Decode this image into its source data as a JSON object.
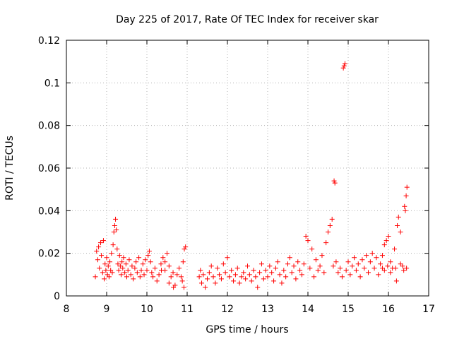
{
  "chart_data": {
    "type": "scatter",
    "title": "Day 225 of 2017, Rate Of TEC Index for receiver skar",
    "xlabel": "GPS time / hours",
    "ylabel": "ROTI / TECUs",
    "xlim": [
      8,
      17
    ],
    "ylim": [
      0,
      0.12
    ],
    "xticks": [
      "8",
      "9",
      "10",
      "11",
      "12",
      "13",
      "14",
      "15",
      "16",
      "17"
    ],
    "yticks": [
      "0",
      "0.02",
      "0.04",
      "0.06",
      "0.08",
      "0.1",
      "0.12"
    ],
    "grid": true,
    "marker": "+",
    "color": "#ff0000",
    "series": [
      {
        "name": "ROTI",
        "points": [
          [
            8.72,
            0.009
          ],
          [
            8.75,
            0.021
          ],
          [
            8.78,
            0.017
          ],
          [
            8.8,
            0.023
          ],
          [
            8.82,
            0.013
          ],
          [
            8.85,
            0.025
          ],
          [
            8.87,
            0.019
          ],
          [
            8.9,
            0.011
          ],
          [
            8.92,
            0.026
          ],
          [
            8.94,
            0.008
          ],
          [
            8.96,
            0.015
          ],
          [
            8.98,
            0.012
          ],
          [
            9.0,
            0.018
          ],
          [
            9.02,
            0.01
          ],
          [
            9.04,
            0.014
          ],
          [
            9.06,
            0.009
          ],
          [
            9.08,
            0.016
          ],
          [
            9.1,
            0.012
          ],
          [
            9.12,
            0.02
          ],
          [
            9.14,
            0.011
          ],
          [
            9.16,
            0.024
          ],
          [
            9.18,
            0.03
          ],
          [
            9.2,
            0.033
          ],
          [
            9.22,
            0.036
          ],
          [
            9.24,
            0.031
          ],
          [
            9.26,
            0.022
          ],
          [
            9.28,
            0.015
          ],
          [
            9.3,
            0.012
          ],
          [
            9.32,
            0.019
          ],
          [
            9.34,
            0.014
          ],
          [
            9.36,
            0.01
          ],
          [
            9.38,
            0.016
          ],
          [
            9.4,
            0.013
          ],
          [
            9.42,
            0.018
          ],
          [
            9.45,
            0.011
          ],
          [
            9.48,
            0.015
          ],
          [
            9.5,
            0.009
          ],
          [
            9.53,
            0.012
          ],
          [
            9.56,
            0.017
          ],
          [
            9.6,
            0.01
          ],
          [
            9.63,
            0.014
          ],
          [
            9.66,
            0.008
          ],
          [
            9.7,
            0.013
          ],
          [
            9.73,
            0.016
          ],
          [
            9.76,
            0.011
          ],
          [
            9.8,
            0.018
          ],
          [
            9.83,
            0.009
          ],
          [
            9.86,
            0.012
          ],
          [
            9.9,
            0.015
          ],
          [
            9.93,
            0.01
          ],
          [
            9.96,
            0.017
          ],
          [
            10.0,
            0.012
          ],
          [
            10.03,
            0.019
          ],
          [
            10.06,
            0.021
          ],
          [
            10.09,
            0.016
          ],
          [
            10.12,
            0.011
          ],
          [
            10.15,
            0.009
          ],
          [
            10.2,
            0.013
          ],
          [
            10.25,
            0.007
          ],
          [
            10.3,
            0.01
          ],
          [
            10.35,
            0.015
          ],
          [
            10.4,
            0.018
          ],
          [
            10.45,
            0.012
          ],
          [
            10.5,
            0.02
          ],
          [
            10.55,
            0.014
          ],
          [
            10.6,
            0.009
          ],
          [
            10.65,
            0.011
          ],
          [
            10.7,
            0.005
          ],
          [
            10.75,
            0.01
          ],
          [
            10.8,
            0.013
          ],
          [
            10.85,
            0.009
          ],
          [
            10.9,
            0.016
          ],
          [
            10.93,
            0.022
          ],
          [
            10.96,
            0.023
          ],
          [
            10.92,
            0.004
          ],
          [
            10.88,
            0.007
          ],
          [
            10.66,
            0.004
          ],
          [
            10.55,
            0.006
          ],
          [
            10.45,
            0.016
          ],
          [
            10.36,
            0.012
          ],
          [
            11.3,
            0.009
          ],
          [
            11.33,
            0.012
          ],
          [
            11.36,
            0.006
          ],
          [
            11.4,
            0.01
          ],
          [
            11.45,
            0.004
          ],
          [
            11.5,
            0.008
          ],
          [
            11.55,
            0.011
          ],
          [
            11.6,
            0.014
          ],
          [
            11.65,
            0.009
          ],
          [
            11.7,
            0.006
          ],
          [
            11.75,
            0.013
          ],
          [
            11.8,
            0.01
          ],
          [
            11.85,
            0.008
          ],
          [
            11.9,
            0.015
          ],
          [
            11.95,
            0.011
          ],
          [
            12.0,
            0.018
          ],
          [
            12.05,
            0.009
          ],
          [
            12.1,
            0.012
          ],
          [
            12.15,
            0.007
          ],
          [
            12.2,
            0.01
          ],
          [
            12.25,
            0.013
          ],
          [
            12.3,
            0.006
          ],
          [
            12.35,
            0.009
          ],
          [
            12.4,
            0.011
          ],
          [
            12.45,
            0.008
          ],
          [
            12.5,
            0.014
          ],
          [
            12.55,
            0.01
          ],
          [
            12.6,
            0.007
          ],
          [
            12.65,
            0.012
          ],
          [
            12.7,
            0.009
          ],
          [
            12.75,
            0.004
          ],
          [
            12.8,
            0.011
          ],
          [
            12.85,
            0.015
          ],
          [
            12.9,
            0.008
          ],
          [
            12.95,
            0.012
          ],
          [
            13.0,
            0.009
          ],
          [
            13.05,
            0.014
          ],
          [
            13.1,
            0.011
          ],
          [
            13.15,
            0.007
          ],
          [
            13.2,
            0.013
          ],
          [
            13.25,
            0.016
          ],
          [
            13.3,
            0.01
          ],
          [
            13.35,
            0.006
          ],
          [
            13.4,
            0.012
          ],
          [
            13.45,
            0.009
          ],
          [
            13.5,
            0.015
          ],
          [
            13.55,
            0.018
          ],
          [
            13.6,
            0.011
          ],
          [
            13.65,
            0.014
          ],
          [
            13.7,
            0.008
          ],
          [
            13.75,
            0.016
          ],
          [
            13.8,
            0.012
          ],
          [
            13.85,
            0.01
          ],
          [
            13.9,
            0.015
          ],
          [
            13.95,
            0.028
          ],
          [
            14.0,
            0.026
          ],
          [
            14.05,
            0.013
          ],
          [
            14.1,
            0.022
          ],
          [
            14.15,
            0.009
          ],
          [
            14.2,
            0.017
          ],
          [
            14.25,
            0.012
          ],
          [
            14.3,
            0.014
          ],
          [
            14.35,
            0.019
          ],
          [
            14.4,
            0.011
          ],
          [
            14.45,
            0.025
          ],
          [
            14.5,
            0.03
          ],
          [
            14.55,
            0.033
          ],
          [
            14.6,
            0.036
          ],
          [
            14.63,
            0.014
          ],
          [
            14.65,
            0.054
          ],
          [
            14.67,
            0.053
          ],
          [
            14.7,
            0.016
          ],
          [
            14.75,
            0.011
          ],
          [
            14.8,
            0.013
          ],
          [
            14.85,
            0.009
          ],
          [
            14.88,
            0.107
          ],
          [
            14.9,
            0.108
          ],
          [
            14.92,
            0.109
          ],
          [
            14.95,
            0.012
          ],
          [
            15.0,
            0.016
          ],
          [
            15.05,
            0.01
          ],
          [
            15.1,
            0.014
          ],
          [
            15.15,
            0.018
          ],
          [
            15.2,
            0.012
          ],
          [
            15.25,
            0.015
          ],
          [
            15.3,
            0.009
          ],
          [
            15.35,
            0.017
          ],
          [
            15.4,
            0.013
          ],
          [
            15.45,
            0.019
          ],
          [
            15.5,
            0.011
          ],
          [
            15.55,
            0.016
          ],
          [
            15.6,
            0.02
          ],
          [
            15.65,
            0.013
          ],
          [
            15.7,
            0.018
          ],
          [
            15.75,
            0.01
          ],
          [
            15.8,
            0.015
          ],
          [
            15.85,
            0.019
          ],
          [
            15.9,
            0.024
          ],
          [
            15.95,
            0.026
          ],
          [
            16.0,
            0.028
          ],
          [
            16.05,
            0.016
          ],
          [
            16.1,
            0.013
          ],
          [
            16.15,
            0.022
          ],
          [
            16.2,
            0.007
          ],
          [
            16.22,
            0.033
          ],
          [
            16.25,
            0.037
          ],
          [
            16.3,
            0.03
          ],
          [
            16.35,
            0.014
          ],
          [
            16.4,
            0.042
          ],
          [
            16.42,
            0.04
          ],
          [
            16.44,
            0.047
          ],
          [
            16.46,
            0.051
          ],
          [
            16.45,
            0.013
          ],
          [
            16.38,
            0.012
          ],
          [
            16.3,
            0.015
          ],
          [
            16.18,
            0.013
          ],
          [
            16.05,
            0.011
          ],
          [
            15.98,
            0.014
          ],
          [
            15.9,
            0.012
          ],
          [
            15.85,
            0.013
          ]
        ]
      }
    ]
  }
}
